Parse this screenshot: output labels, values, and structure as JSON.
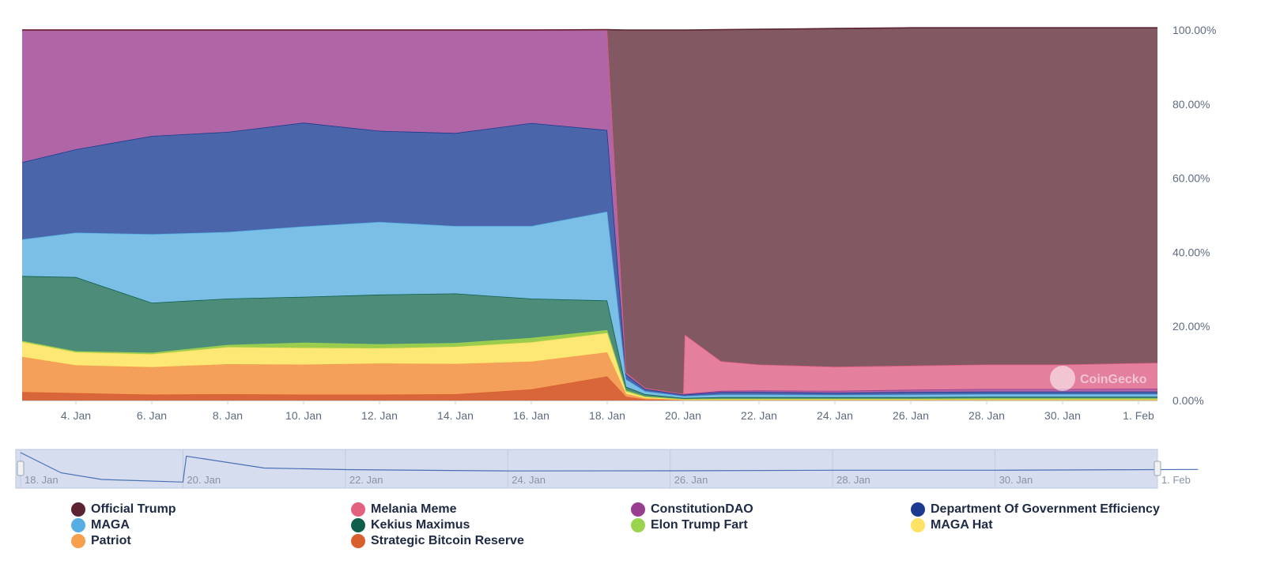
{
  "chart_data": {
    "type": "area",
    "stacking": "percent",
    "y_axis": {
      "position": "right",
      "ticks": [
        "0.00%",
        "20.00%",
        "40.00%",
        "60.00%",
        "80.00%",
        "100.00%"
      ],
      "ylim": [
        0,
        100
      ]
    },
    "x_axis": {
      "ticks": [
        "4. Jan",
        "6. Jan",
        "8. Jan",
        "10. Jan",
        "12. Jan",
        "14. Jan",
        "16. Jan",
        "18. Jan",
        "20. Jan",
        "22. Jan",
        "24. Jan",
        "26. Jan",
        "28. Jan",
        "30. Jan",
        "1. Feb"
      ],
      "xlim": [
        "2025-01-02T14:00",
        "2025-02-01T12:00"
      ]
    },
    "navigator": {
      "ticks": [
        "18. Jan",
        "20. Jan",
        "22. Jan",
        "24. Jan",
        "26. Jan",
        "28. Jan",
        "30. Jan",
        "1. Feb"
      ],
      "xlim": [
        "2025-01-18",
        "2025-02-01"
      ]
    },
    "watermark": "CoinGecko",
    "legend_position": "bottom",
    "x": [
      "2025-01-02T14:00",
      "2025-01-04",
      "2025-01-06",
      "2025-01-08",
      "2025-01-10",
      "2025-01-12",
      "2025-01-14",
      "2025-01-16",
      "2025-01-18",
      "2025-01-18T12:00",
      "2025-01-19",
      "2025-01-20",
      "2025-01-20T01:00",
      "2025-01-21",
      "2025-01-22",
      "2025-01-24",
      "2025-01-26",
      "2025-01-28",
      "2025-01-30",
      "2025-02-01T12:00"
    ],
    "series": [
      {
        "name": "Strategic Bitcoin Reserve",
        "color": "#d9653b",
        "values": [
          2.3,
          2,
          1.6,
          1.7,
          1.6,
          1.6,
          1.7,
          3,
          6.5,
          1,
          0.3,
          0.1,
          0.1,
          0.1,
          0.1,
          0.1,
          0.1,
          0.1,
          0.1,
          0.1
        ]
      },
      {
        "name": "Patriot",
        "color": "#f5a05a",
        "values": [
          9.5,
          7.5,
          7.4,
          8.1,
          8.1,
          8.4,
          8.2,
          7.5,
          6.5,
          0.8,
          0.3,
          0.1,
          0.1,
          0.1,
          0.1,
          0.1,
          0.1,
          0.1,
          0.1,
          0.1
        ]
      },
      {
        "name": "MAGA Hat",
        "color": "#fde775",
        "values": [
          4,
          3.5,
          3.5,
          4.6,
          4.5,
          4.1,
          4.6,
          5.2,
          5.2,
          0.6,
          0.3,
          0.1,
          0.1,
          0.1,
          0.1,
          0.1,
          0.1,
          0.1,
          0.1,
          0.1
        ]
      },
      {
        "name": "Elon Trump Fart",
        "color": "#9acd4e",
        "values": [
          0.3,
          0.3,
          0.4,
          0.6,
          1.4,
          1.1,
          1,
          1.2,
          0.8,
          0.3,
          0.2,
          0.1,
          0.1,
          0.2,
          0.2,
          0.2,
          0.2,
          0.3,
          0.3,
          0.3
        ]
      },
      {
        "name": "Kekius Maximus",
        "color": "#4e8c7a",
        "values": [
          17.5,
          20,
          13.5,
          12.5,
          12.4,
          13.4,
          13.4,
          10.6,
          8,
          1,
          0.6,
          0.3,
          0.3,
          0.4,
          0.4,
          0.4,
          0.4,
          0.4,
          0.4,
          0.4
        ]
      },
      {
        "name": "MAGA",
        "color": "#7bbfe6",
        "values": [
          9.9,
          12,
          18.5,
          18,
          19,
          19.6,
          18.2,
          19.6,
          24,
          2,
          0.8,
          0.5,
          0.5,
          0.7,
          0.7,
          0.6,
          0.7,
          0.7,
          0.7,
          0.7
        ]
      },
      {
        "name": "Department Of Government Efficiency",
        "color": "#4a65aa",
        "values": [
          20.8,
          22.5,
          26.5,
          27,
          28,
          24.6,
          25.1,
          27.8,
          22,
          1.3,
          0.6,
          0.4,
          0.4,
          0.7,
          0.7,
          0.6,
          0.7,
          0.7,
          0.7,
          0.7
        ]
      },
      {
        "name": "ConstitutionDAO",
        "color": "#b066a6",
        "values": [
          35.7,
          32.2,
          28.6,
          27.5,
          25,
          27.2,
          27.8,
          25.1,
          27,
          0.5,
          0.3,
          0.2,
          0.2,
          0.3,
          0.4,
          0.5,
          0.6,
          0.7,
          0.7,
          0.8
        ]
      },
      {
        "name": "Melania Meme",
        "color": "#e47f9e",
        "values": [
          0,
          0,
          0,
          0,
          0,
          0,
          0,
          0,
          0,
          0,
          0,
          0,
          16,
          8,
          7,
          6.5,
          6.5,
          6.6,
          6.6,
          7
        ]
      },
      {
        "name": "Official Trump",
        "color": "#825863",
        "values": [
          0,
          0,
          0,
          0,
          0,
          0,
          0,
          0,
          0.1,
          92.5,
          96.6,
          98.2,
          82.2,
          89.5,
          90.5,
          91.3,
          91.2,
          90.9,
          90.9,
          90.4
        ]
      }
    ],
    "legend": [
      {
        "name": "Official Trump",
        "color": "#5b2332"
      },
      {
        "name": "Melania Meme",
        "color": "#e4607f"
      },
      {
        "name": "ConstitutionDAO",
        "color": "#993d91"
      },
      {
        "name": "Department Of Government Efficiency",
        "color": "#1c3a8f"
      },
      {
        "name": "MAGA",
        "color": "#56aee3"
      },
      {
        "name": "Kekius Maximus",
        "color": "#0f5e4c"
      },
      {
        "name": "Elon Trump Fart",
        "color": "#9ad44f"
      },
      {
        "name": "MAGA Hat",
        "color": "#fde263"
      },
      {
        "name": "Patriot",
        "color": "#f6a04d"
      },
      {
        "name": "Strategic Bitcoin Reserve",
        "color": "#d8602f"
      }
    ]
  }
}
